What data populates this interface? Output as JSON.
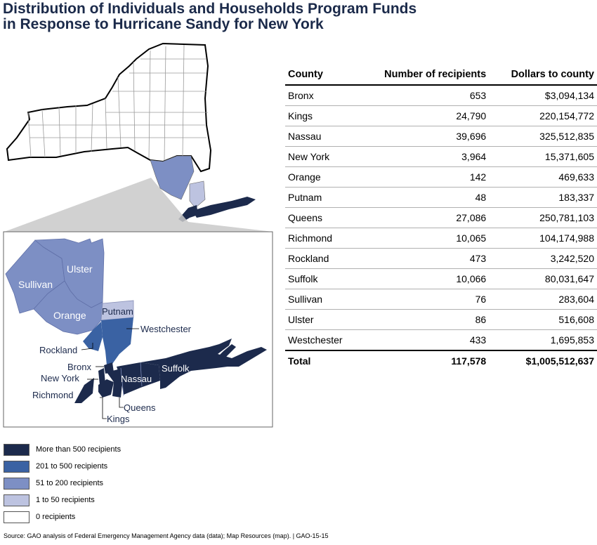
{
  "title_line1": "Distribution of Individuals and Households Program Funds",
  "title_line2": "in Response to Hurricane Sandy for New York",
  "map": {
    "labels": {
      "ulster": "Ulster",
      "sullivan": "Sullivan",
      "orange": "Orange",
      "putnam": "Putnam",
      "westchester": "Westchester",
      "rockland": "Rockland",
      "bronx": "Bronx",
      "new_york": "New York",
      "richmond": "Richmond",
      "nassau": "Nassau",
      "suffolk": "Suffolk",
      "queens": "Queens",
      "kings": "Kings"
    },
    "colors": {
      "more_than_500": "#1c2a4c",
      "201_to_500": "#3a62a3",
      "51_to_200": "#7d8fc4",
      "1_to_50": "#bdc3e0",
      "zero": "#ffffff"
    }
  },
  "table": {
    "headers": [
      "County",
      "Number of recipients",
      "Dollars to county"
    ],
    "rows": [
      {
        "county": "Bronx",
        "recipients": "653",
        "dollars": "$3,094,134"
      },
      {
        "county": "Kings",
        "recipients": "24,790",
        "dollars": "220,154,772"
      },
      {
        "county": "Nassau",
        "recipients": "39,696",
        "dollars": "325,512,835"
      },
      {
        "county": "New York",
        "recipients": "3,964",
        "dollars": "15,371,605"
      },
      {
        "county": "Orange",
        "recipients": "142",
        "dollars": "469,633"
      },
      {
        "county": "Putnam",
        "recipients": "48",
        "dollars": "183,337"
      },
      {
        "county": "Queens",
        "recipients": "27,086",
        "dollars": "250,781,103"
      },
      {
        "county": "Richmond",
        "recipients": "10,065",
        "dollars": "104,174,988"
      },
      {
        "county": "Rockland",
        "recipients": "473",
        "dollars": "3,242,520"
      },
      {
        "county": "Suffolk",
        "recipients": "10,066",
        "dollars": "80,031,647"
      },
      {
        "county": "Sullivan",
        "recipients": "76",
        "dollars": "283,604"
      },
      {
        "county": "Ulster",
        "recipients": "86",
        "dollars": "516,608"
      },
      {
        "county": "Westchester",
        "recipients": "433",
        "dollars": "1,695,853"
      }
    ],
    "total": {
      "county": "Total",
      "recipients": "117,578",
      "dollars": "$1,005,512,637"
    }
  },
  "legend": [
    {
      "label": "More than 500 recipients",
      "color": "#1c2a4c"
    },
    {
      "label": "201 to 500 recipients",
      "color": "#3a62a3"
    },
    {
      "label": "51 to 200 recipients",
      "color": "#7d8fc4"
    },
    {
      "label": "1 to 50 recipients",
      "color": "#bdc3e0"
    },
    {
      "label": "0 recipients",
      "color": "#ffffff"
    }
  ],
  "source": "Source: GAO analysis of Federal Emergency Management Agency data (data); Map Resources (map).  |  GAO-15-15"
}
